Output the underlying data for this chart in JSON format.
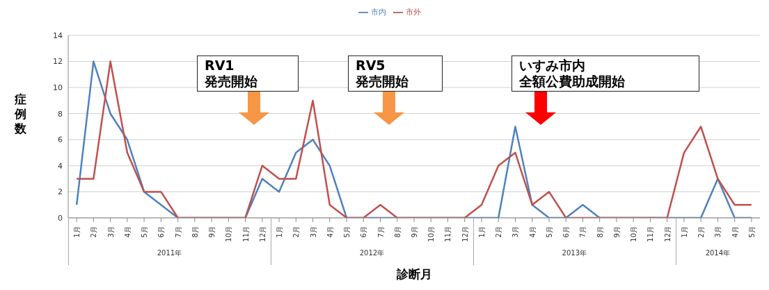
{
  "chart_data": {
    "type": "line",
    "xlabel": "診断月",
    "ylabel": "症例数",
    "categories": [
      "1月",
      "2月",
      "3月",
      "4月",
      "5月",
      "6月",
      "7月",
      "8月",
      "9月",
      "10月",
      "11月",
      "12月",
      "1月",
      "2月",
      "3月",
      "4月",
      "5月",
      "6月",
      "7月",
      "8月",
      "9月",
      "10月",
      "11月",
      "12月",
      "1月",
      "2月",
      "3月",
      "4月",
      "5月",
      "6月",
      "7月",
      "8月",
      "9月",
      "10月",
      "11月",
      "12月",
      "1月",
      "2月",
      "3月",
      "4月",
      "5月"
    ],
    "series": [
      {
        "name": "市内",
        "color": "#4f81bd",
        "values": [
          1,
          12,
          8,
          6,
          2,
          1,
          0,
          0,
          0,
          0,
          0,
          3,
          2,
          5,
          6,
          4,
          0,
          0,
          0,
          0,
          0,
          0,
          0,
          0,
          0,
          0,
          7,
          1,
          0,
          0,
          1,
          0,
          0,
          0,
          0,
          0,
          0,
          0,
          3,
          0,
          0
        ]
      },
      {
        "name": "市外",
        "color": "#c0504d",
        "values": [
          3,
          3,
          12,
          5,
          2,
          2,
          0,
          0,
          0,
          0,
          0,
          4,
          3,
          3,
          9,
          1,
          0,
          0,
          1,
          0,
          0,
          0,
          0,
          0,
          1,
          4,
          5,
          1,
          2,
          0,
          0,
          0,
          0,
          0,
          0,
          0,
          5,
          7,
          3,
          1,
          1
        ]
      }
    ],
    "ylim": [
      0,
      14
    ],
    "yticks": [
      0,
      2,
      4,
      6,
      8,
      10,
      12,
      14
    ],
    "grid": "y",
    "legend": "top",
    "marker": "none",
    "line_style": "solid",
    "annotations": [
      "RV1\n発売開始",
      "RV5\n発売開始",
      "いすみ市内",
      "全額公費助成開始",
      "2011年",
      "2012年",
      "2013年",
      "2014年"
    ]
  }
}
